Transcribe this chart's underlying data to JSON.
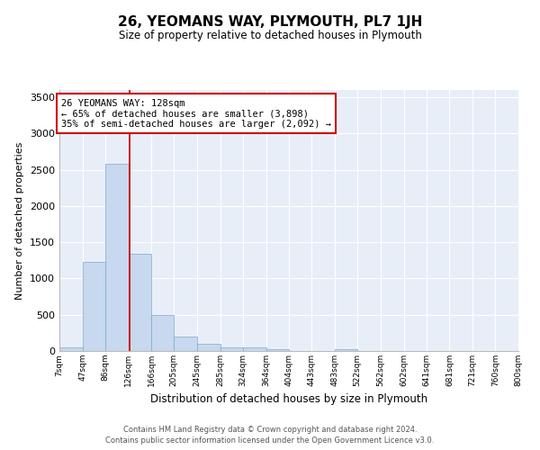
{
  "title": "26, YEOMANS WAY, PLYMOUTH, PL7 1JH",
  "subtitle": "Size of property relative to detached houses in Plymouth",
  "xlabel": "Distribution of detached houses by size in Plymouth",
  "ylabel": "Number of detached properties",
  "bar_color": "#c8d8ee",
  "bar_edge_color": "#7aaad0",
  "background_color": "#e8eef8",
  "grid_color": "#ffffff",
  "bin_edges": [
    7,
    47,
    86,
    126,
    166,
    205,
    245,
    285,
    324,
    364,
    404,
    443,
    483,
    522,
    562,
    602,
    641,
    681,
    721,
    760,
    800
  ],
  "bar_heights": [
    50,
    1230,
    2580,
    1340,
    500,
    195,
    100,
    50,
    45,
    30,
    0,
    0,
    30,
    0,
    0,
    0,
    0,
    0,
    0,
    0
  ],
  "red_line_x": 128,
  "annotation_line1": "26 YEOMANS WAY: 128sqm",
  "annotation_line2": "← 65% of detached houses are smaller (3,898)",
  "annotation_line3": "35% of semi-detached houses are larger (2,092) →",
  "annotation_box_color": "#ffffff",
  "annotation_border_color": "#cc0000",
  "red_line_color": "#cc0000",
  "ylim": [
    0,
    3600
  ],
  "yticks": [
    0,
    500,
    1000,
    1500,
    2000,
    2500,
    3000,
    3500
  ],
  "footer_line1": "Contains HM Land Registry data © Crown copyright and database right 2024.",
  "footer_line2": "Contains public sector information licensed under the Open Government Licence v3.0.",
  "tick_labels": [
    "7sqm",
    "47sqm",
    "86sqm",
    "126sqm",
    "166sqm",
    "205sqm",
    "245sqm",
    "285sqm",
    "324sqm",
    "364sqm",
    "404sqm",
    "443sqm",
    "483sqm",
    "522sqm",
    "562sqm",
    "602sqm",
    "641sqm",
    "681sqm",
    "721sqm",
    "760sqm",
    "800sqm"
  ]
}
